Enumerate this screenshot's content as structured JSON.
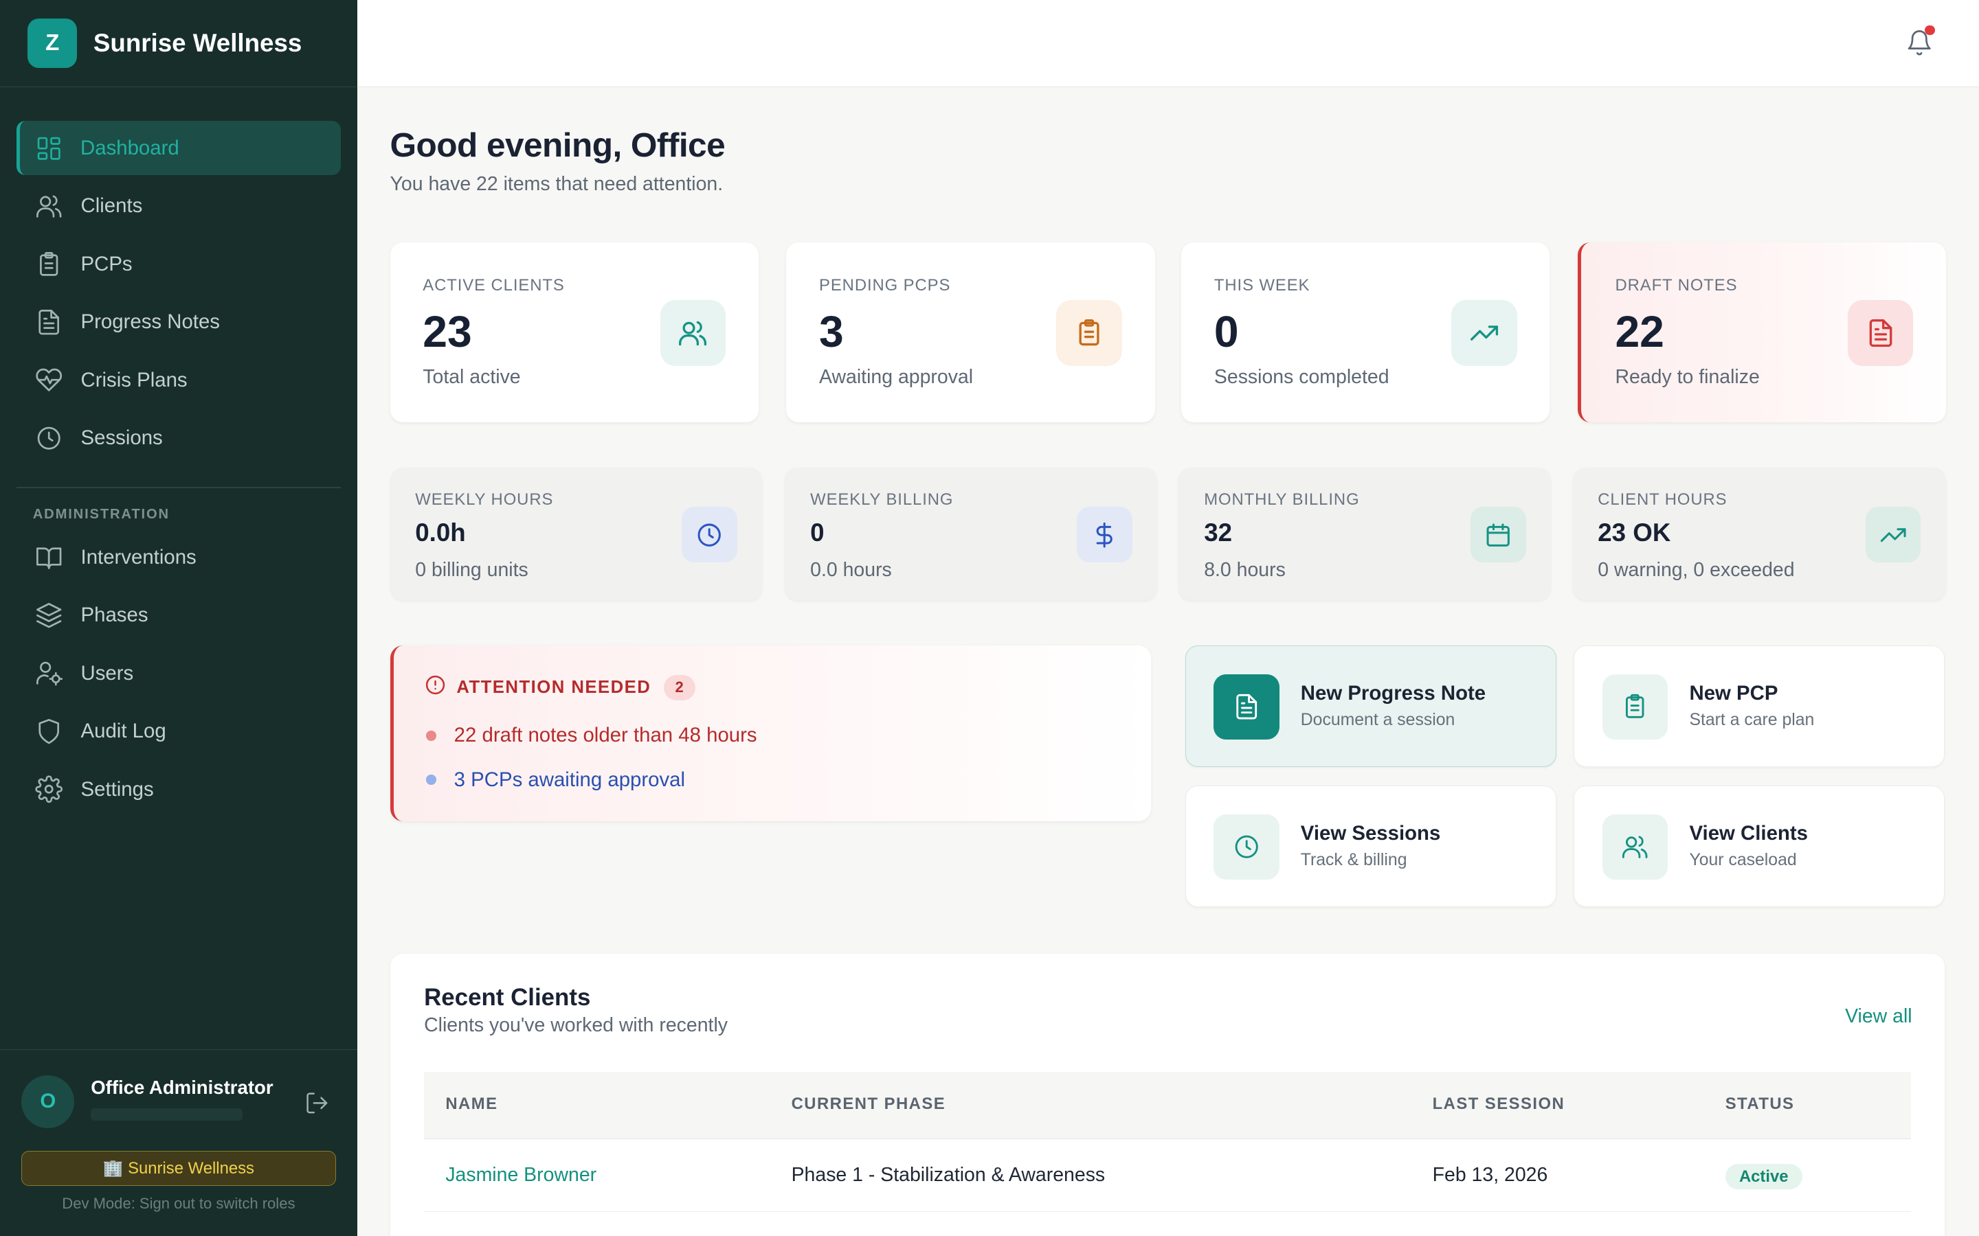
{
  "brand": {
    "initial": "Z",
    "name": "Sunrise Wellness"
  },
  "nav": {
    "items": [
      {
        "label": "Dashboard"
      },
      {
        "label": "Clients"
      },
      {
        "label": "PCPs"
      },
      {
        "label": "Progress Notes"
      },
      {
        "label": "Crisis Plans"
      },
      {
        "label": "Sessions"
      }
    ],
    "admin_section": "ADMINISTRATION",
    "admin_items": [
      {
        "label": "Interventions"
      },
      {
        "label": "Phases"
      },
      {
        "label": "Users"
      },
      {
        "label": "Audit Log"
      },
      {
        "label": "Settings"
      }
    ]
  },
  "user": {
    "initial": "O",
    "name": "Office Administrator",
    "org_badge": "🏢 Sunrise Wellness",
    "dev_note": "Dev Mode: Sign out to switch roles"
  },
  "header": {
    "greeting": "Good evening, Office",
    "subtitle": "You have 22 items that need attention."
  },
  "stats": [
    {
      "label": "ACTIVE CLIENTS",
      "value": "23",
      "sub": "Total active",
      "icon": "users-icon",
      "color": "#169283"
    },
    {
      "label": "PENDING PCPS",
      "value": "3",
      "sub": "Awaiting approval",
      "icon": "clipboard-icon",
      "color": "#c76b1a"
    },
    {
      "label": "THIS WEEK",
      "value": "0",
      "sub": "Sessions completed",
      "icon": "trending-up-icon",
      "color": "#169283"
    },
    {
      "label": "DRAFT NOTES",
      "value": "22",
      "sub": "Ready to finalize",
      "icon": "file-text-icon",
      "color": "#d23a3a"
    }
  ],
  "metrics": [
    {
      "label": "WEEKLY HOURS",
      "value": "0.0h",
      "sub": "0 billing units",
      "icon": "clock-icon"
    },
    {
      "label": "WEEKLY BILLING",
      "value": "0",
      "sub": "0.0 hours",
      "icon": "dollar-icon"
    },
    {
      "label": "MONTHLY BILLING",
      "value": "32",
      "sub": "8.0 hours",
      "icon": "calendar-icon"
    },
    {
      "label": "CLIENT HOURS",
      "value": "23 OK",
      "sub": "0 warning, 0 exceeded",
      "icon": "trending-up-icon"
    }
  ],
  "attention": {
    "title": "ATTENTION NEEDED",
    "count": "2",
    "items": [
      {
        "text": "22 draft notes older than 48 hours",
        "color": "#b52b2b",
        "dot": "#e88a8a"
      },
      {
        "text": "3 PCPs awaiting approval",
        "color": "#2a4fb0",
        "dot": "#93b0ea"
      }
    ]
  },
  "quick_actions": [
    {
      "title": "New Progress Note",
      "sub": "Document a session"
    },
    {
      "title": "New PCP",
      "sub": "Start a care plan"
    },
    {
      "title": "View Sessions",
      "sub": "Track & billing"
    },
    {
      "title": "View Clients",
      "sub": "Your caseload"
    }
  ],
  "recent": {
    "title": "Recent Clients",
    "subtitle": "Clients you've worked with recently",
    "view_all": "View all",
    "columns": [
      "NAME",
      "CURRENT PHASE",
      "LAST SESSION",
      "STATUS"
    ],
    "rows": [
      {
        "name": "Jasmine Browner",
        "phase": "Phase 1 - Stabilization & Awareness",
        "last_session": "Feb 13, 2026",
        "status": "Active"
      }
    ]
  }
}
